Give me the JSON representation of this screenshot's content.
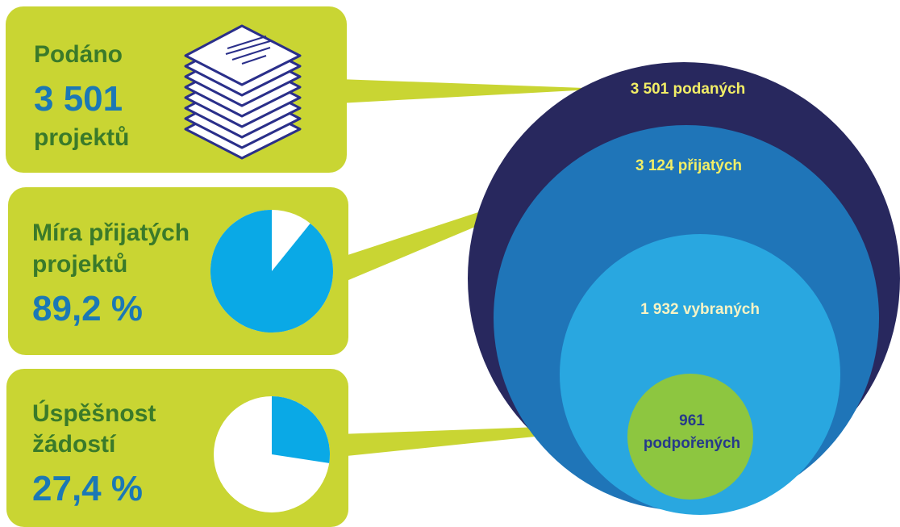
{
  "colors": {
    "panel_bg": "#c9d533",
    "panel_text_green": "#3a7a2a",
    "panel_text_blue": "#1b78b5",
    "pie_blue": "#0aa9e6",
    "circle_outer": "#28285e",
    "circle_second": "#1f75b8",
    "circle_third": "#29a7e0",
    "circle_inner": "#8dc640",
    "label_yellow": "#f2ee66",
    "label_light": "#f7f3c4",
    "label_inner": "#263a8a"
  },
  "panels": [
    {
      "id": "submitted",
      "lines": [
        "Podáno",
        "3 501",
        "projektů"
      ],
      "icon": "document-stack-icon"
    },
    {
      "id": "accepted-rate",
      "lines": [
        "Míra přijatých",
        "projektů",
        "89,2 %"
      ],
      "pie_fraction": 0.892
    },
    {
      "id": "success-rate",
      "lines": [
        "Úspěšnost",
        "žádostí",
        "27,4 %"
      ],
      "pie_fraction": 0.274
    }
  ],
  "circles": [
    {
      "id": "submitted",
      "value": 3501,
      "label": "3 501 podaných"
    },
    {
      "id": "accepted",
      "value": 3124,
      "label": "3 124 přijatých"
    },
    {
      "id": "selected",
      "value": 1932,
      "label": "1 932 vybraných"
    },
    {
      "id": "supported",
      "value": 961,
      "label_lines": [
        "961",
        "podpořených"
      ]
    }
  ]
}
